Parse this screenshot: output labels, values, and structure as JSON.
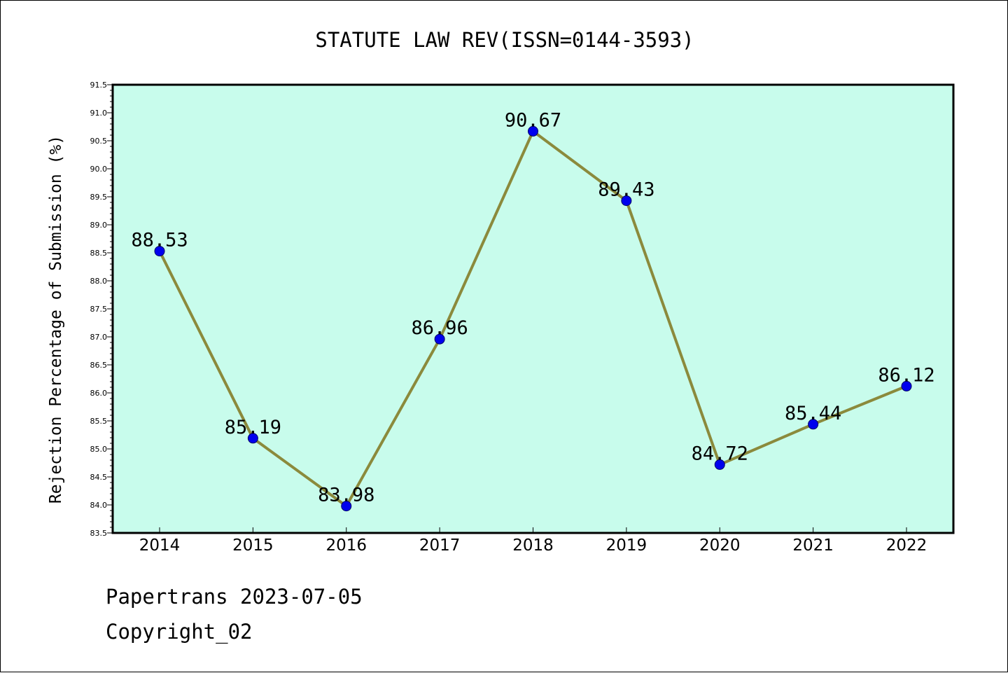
{
  "chart_data": {
    "type": "line",
    "title": "STATUTE LAW REV(ISSN=0144-3593)",
    "xlabel": "",
    "ylabel": "Rejection Percentage of Submission (%)",
    "categories": [
      "2014",
      "2015",
      "2016",
      "2017",
      "2018",
      "2019",
      "2020",
      "2021",
      "2022"
    ],
    "series": [
      {
        "values": [
          88.53,
          85.19,
          83.98,
          86.96,
          90.67,
          89.43,
          84.72,
          85.44,
          86.12
        ]
      }
    ],
    "data_labels": [
      "88.53",
      "85.19",
      "83.98",
      "86.96",
      "90.67",
      "89.43",
      "84.72",
      "85.44",
      "86.12"
    ],
    "ylim": [
      83.5,
      91.5
    ],
    "y_ticks": [
      "83.5",
      "84.0",
      "84.5",
      "85.0",
      "85.5",
      "86.0",
      "86.5",
      "87.0",
      "87.5",
      "88.0",
      "88.5",
      "89.0",
      "89.5",
      "90.0",
      "90.5",
      "91.0",
      "91.5"
    ],
    "grid": false,
    "legend": "none",
    "colors": {
      "plot_background": "#c8fcec",
      "line": "#8b8a3c",
      "marker": "#0000ee",
      "axis": "#000000"
    }
  },
  "footer": {
    "line1": "Papertrans 2023-07-05",
    "line2": "Copyright_02"
  }
}
